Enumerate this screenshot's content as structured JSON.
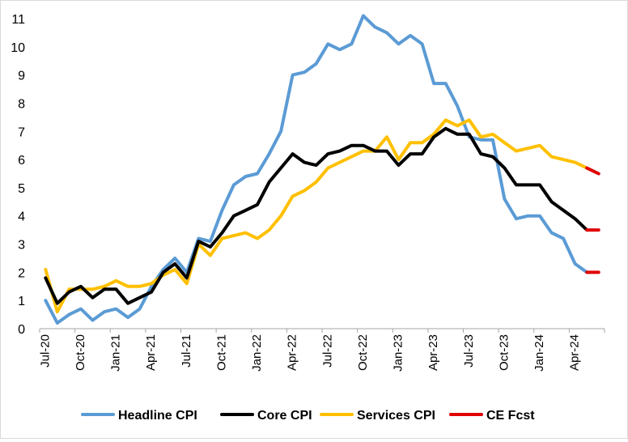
{
  "chart_data": {
    "type": "line",
    "title": "",
    "xlabel": "",
    "ylabel": "",
    "ylim": [
      0,
      11
    ],
    "yticks": [
      "0",
      "1",
      "2",
      "3",
      "4",
      "5",
      "6",
      "7",
      "8",
      "9",
      "10",
      "11"
    ],
    "x_tick_labels": [
      "Jul-20",
      "Oct-20",
      "Jan-21",
      "Apr-21",
      "Jul-21",
      "Oct-21",
      "Jan-22",
      "Apr-22",
      "Jul-22",
      "Oct-22",
      "Jan-23",
      "Apr-23",
      "Jul-23",
      "Oct-23",
      "Jan-24",
      "Apr-24"
    ],
    "x": [
      "Jul-20",
      "Aug-20",
      "Sep-20",
      "Oct-20",
      "Nov-20",
      "Dec-20",
      "Jan-21",
      "Feb-21",
      "Mar-21",
      "Apr-21",
      "May-21",
      "Jun-21",
      "Jul-21",
      "Aug-21",
      "Sep-21",
      "Oct-21",
      "Nov-21",
      "Dec-21",
      "Jan-22",
      "Feb-22",
      "Mar-22",
      "Apr-22",
      "May-22",
      "Jun-22",
      "Jul-22",
      "Aug-22",
      "Sep-22",
      "Oct-22",
      "Nov-22",
      "Dec-22",
      "Jan-23",
      "Feb-23",
      "Mar-23",
      "Apr-23",
      "May-23",
      "Jun-23",
      "Jul-23",
      "Aug-23",
      "Sep-23",
      "Oct-23",
      "Nov-23",
      "Dec-23",
      "Jan-24",
      "Feb-24",
      "Mar-24",
      "Apr-24",
      "May-24",
      "Jun-24"
    ],
    "grid": false,
    "legend_position": "bottom",
    "series": [
      {
        "name": "Headline CPI",
        "color": "#5B9BD5",
        "values": [
          1.0,
          0.2,
          0.5,
          0.7,
          0.3,
          0.6,
          0.7,
          0.4,
          0.7,
          1.5,
          2.1,
          2.5,
          2.0,
          3.2,
          3.1,
          4.2,
          5.1,
          5.4,
          5.5,
          6.2,
          7.0,
          9.0,
          9.1,
          9.4,
          10.1,
          9.9,
          10.1,
          11.1,
          10.7,
          10.5,
          10.1,
          10.4,
          10.1,
          8.7,
          8.7,
          7.9,
          6.8,
          6.7,
          6.7,
          4.6,
          3.9,
          4.0,
          4.0,
          3.4,
          3.2,
          2.3,
          2.0,
          null
        ]
      },
      {
        "name": "Core CPI",
        "color": "#000000",
        "values": [
          1.8,
          0.9,
          1.3,
          1.5,
          1.1,
          1.4,
          1.4,
          0.9,
          1.1,
          1.3,
          2.0,
          2.3,
          1.8,
          3.1,
          2.9,
          3.4,
          4.0,
          4.2,
          4.4,
          5.2,
          5.7,
          6.2,
          5.9,
          5.8,
          6.2,
          6.3,
          6.5,
          6.5,
          6.3,
          6.3,
          5.8,
          6.2,
          6.2,
          6.8,
          7.1,
          6.9,
          6.9,
          6.2,
          6.1,
          5.7,
          5.1,
          5.1,
          5.1,
          4.5,
          4.2,
          3.9,
          3.5,
          null
        ]
      },
      {
        "name": "Services CPI",
        "color": "#FFC000",
        "values": [
          2.1,
          0.6,
          1.4,
          1.4,
          1.4,
          1.5,
          1.7,
          1.5,
          1.5,
          1.6,
          1.9,
          2.1,
          1.6,
          3.0,
          2.6,
          3.2,
          3.3,
          3.4,
          3.2,
          3.5,
          4.0,
          4.7,
          4.9,
          5.2,
          5.7,
          5.9,
          6.1,
          6.3,
          6.3,
          6.8,
          6.0,
          6.6,
          6.6,
          6.9,
          7.4,
          7.2,
          7.4,
          6.8,
          6.9,
          6.6,
          6.3,
          6.4,
          6.5,
          6.1,
          6.0,
          5.9,
          5.7,
          null
        ]
      },
      {
        "name": "CE Fcst",
        "color": "#E00000",
        "segments": [
          [
            5.7,
            5.5
          ],
          [
            3.5,
            3.5
          ],
          [
            2.0,
            2.0
          ]
        ],
        "segment_start": "May-24",
        "segment_end": "Jun-24"
      }
    ]
  }
}
